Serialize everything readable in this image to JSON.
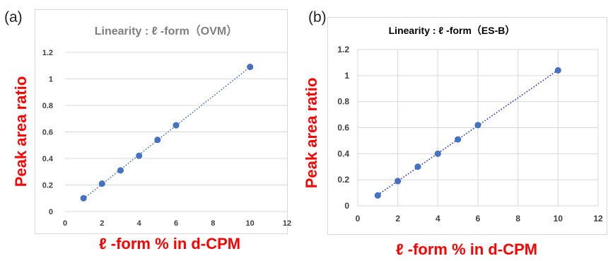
{
  "panels": [
    {
      "tag": "(a)",
      "y_label": "Peak area ratio",
      "x_label": "ℓ -form % in d-CPM"
    },
    {
      "tag": "(b)",
      "y_label": "Peak area ratio",
      "x_label": "ℓ -form % in d-CPM"
    }
  ],
  "chart_data": [
    {
      "type": "scatter",
      "title": "Linearity : ℓ -form（OVM）",
      "title_color": "#7f7f7f",
      "xlabel": "ℓ -form % in d-CPM",
      "ylabel": "Peak area ratio",
      "xlim": [
        0,
        12
      ],
      "ylim": [
        0,
        1.2
      ],
      "xticks": [
        0,
        2,
        4,
        6,
        8,
        10,
        12
      ],
      "yticks": [
        0,
        0.2,
        0.4,
        0.6,
        0.8,
        1,
        1.2
      ],
      "grid": "horizontal",
      "series": [
        {
          "x": [
            1,
            2,
            3,
            4,
            5,
            6,
            10
          ],
          "y": [
            0.1,
            0.21,
            0.31,
            0.42,
            0.54,
            0.65,
            1.09
          ],
          "marker_color": "#4472c4",
          "trendline": "linear dotted"
        }
      ]
    },
    {
      "type": "scatter",
      "title": "Linearity : ℓ -form（ES-B）",
      "title_color": "#000000",
      "xlabel": "ℓ -form % in d-CPM",
      "ylabel": "Peak area ratio",
      "xlim": [
        0,
        12
      ],
      "ylim": [
        0,
        1.2
      ],
      "xticks": [
        0,
        2,
        4,
        6,
        8,
        10,
        12
      ],
      "yticks": [
        0,
        0.2,
        0.4,
        0.6,
        0.8,
        1,
        1.2
      ],
      "grid": "both",
      "series": [
        {
          "x": [
            1,
            2,
            3,
            4,
            5,
            6,
            10
          ],
          "y": [
            0.08,
            0.19,
            0.3,
            0.4,
            0.51,
            0.62,
            1.04
          ],
          "marker_color": "#4472c4",
          "trendline": "linear dotted"
        }
      ]
    }
  ]
}
